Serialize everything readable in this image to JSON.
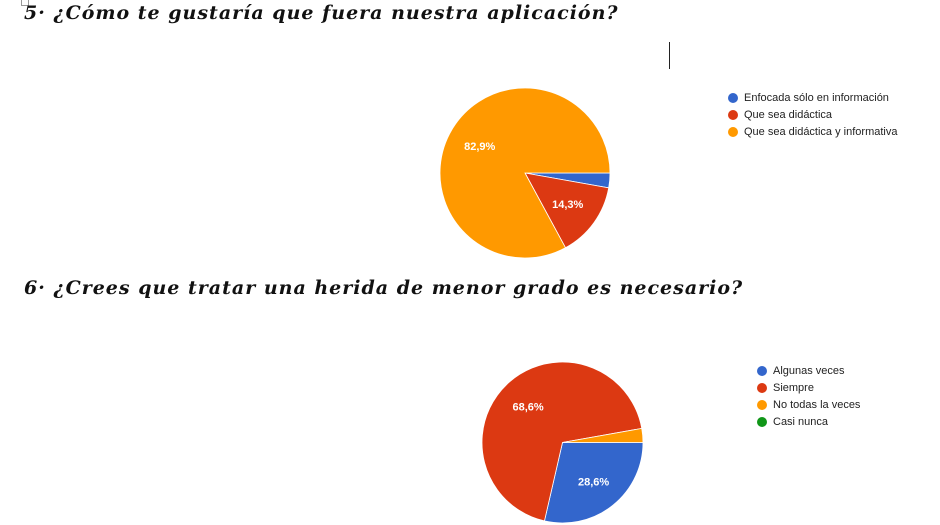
{
  "q5": {
    "title": "5· ¿Cómo te gustaría que fuera nuestra aplicación?"
  },
  "q6": {
    "title": "6· ¿Crees que tratar una herida de menor grado es necesario?"
  },
  "chart_data": [
    {
      "type": "pie",
      "title": "5· ¿Cómo te gustaría que fuera nuestra aplicación?",
      "categories": [
        "Enfocada sólo en información",
        "Que sea didáctica",
        "Que sea didáctica y informativa"
      ],
      "values": [
        2.8,
        14.3,
        82.9
      ],
      "value_labels": [
        "",
        "14,3%",
        "82,9%"
      ],
      "colors": [
        "#3366cc",
        "#dc3912",
        "#ff9900"
      ],
      "legend_position": "right"
    },
    {
      "type": "pie",
      "title": "6· ¿Crees que tratar una herida de menor grado es necesario?",
      "categories": [
        "Algunas veces",
        "Siempre",
        "No todas la veces",
        "Casi nunca"
      ],
      "values": [
        28.6,
        68.6,
        2.8,
        0
      ],
      "value_labels": [
        "28,6%",
        "68,6%",
        "",
        ""
      ],
      "colors": [
        "#3366cc",
        "#dc3912",
        "#ff9900",
        "#109618"
      ],
      "legend_position": "right"
    }
  ]
}
